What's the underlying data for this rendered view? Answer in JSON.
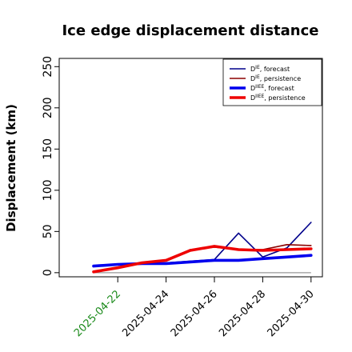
{
  "chart_data": {
    "type": "line",
    "title": "Ice edge displacement distance",
    "ylabel": "Displacement (km)",
    "xlabel": "",
    "ylim": [
      -5,
      260
    ],
    "yticks": [
      0,
      50,
      100,
      150,
      200,
      250
    ],
    "x": [
      "2025-04-21",
      "2025-04-22",
      "2025-04-23",
      "2025-04-24",
      "2025-04-25",
      "2025-04-26",
      "2025-04-27",
      "2025-04-28",
      "2025-04-29",
      "2025-04-30"
    ],
    "xticks": [
      {
        "label": "2025-04-22",
        "color": "#1a8a1a"
      },
      {
        "label": "2025-04-24",
        "color": "#000000"
      },
      {
        "label": "2025-04-26",
        "color": "#000000"
      },
      {
        "label": "2025-04-28",
        "color": "#000000"
      },
      {
        "label": "2025-04-30",
        "color": "#000000"
      }
    ],
    "baseline": 0,
    "legend_placement": "top-right",
    "series": [
      {
        "name": "D^IE_forecast",
        "base": "D",
        "sup": "IE",
        "suffix": ", forecast",
        "color": "#00008b",
        "width": 1.6,
        "values": [
          8,
          10,
          11,
          12,
          14,
          16,
          48,
          19,
          30,
          61
        ]
      },
      {
        "name": "D^IE_persistence",
        "base": "D",
        "sup": "IE",
        "suffix": ", persistence",
        "color": "#8b0000",
        "width": 1.6,
        "values": [
          1,
          6,
          12,
          15,
          28,
          31,
          28,
          28,
          34,
          33
        ]
      },
      {
        "name": "D^IIEE_forecast",
        "base": "D",
        "sup": "IIEE",
        "suffix": ", forecast",
        "color": "#0000ee",
        "width": 3.6,
        "values": [
          8,
          10,
          11,
          11,
          13,
          15,
          15,
          17,
          19,
          21
        ]
      },
      {
        "name": "D^IIEE_persistence",
        "base": "D",
        "sup": "IIEE",
        "suffix": ", persistence",
        "color": "#ee0000",
        "width": 3.6,
        "values": [
          1,
          6,
          12,
          15,
          27,
          32,
          28,
          27,
          28,
          29
        ]
      }
    ]
  }
}
